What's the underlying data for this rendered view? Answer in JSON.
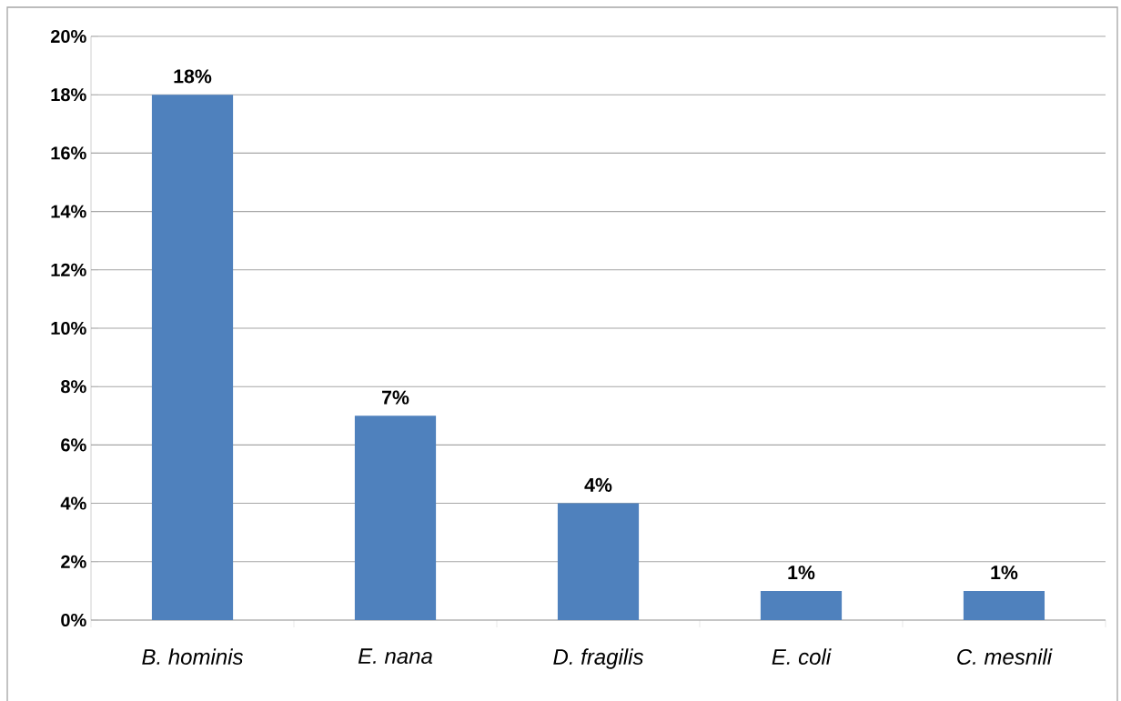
{
  "chart_data": {
    "type": "bar",
    "categories": [
      "B. hominis",
      "E. nana",
      "D. fragilis",
      "E. coli",
      "C. mesnili"
    ],
    "values": [
      18,
      7,
      4,
      1,
      1
    ],
    "value_labels": [
      "18%",
      "7%",
      "4%",
      "1%",
      "1%"
    ],
    "color": "#4f81bd",
    "ylim": [
      0,
      20
    ],
    "yticks": [
      {
        "value": 0,
        "label": "0%"
      },
      {
        "value": 2,
        "label": "2%"
      },
      {
        "value": 4,
        "label": "4%"
      },
      {
        "value": 6,
        "label": "6%"
      },
      {
        "value": 8,
        "label": "8%"
      },
      {
        "value": 10,
        "label": "10%"
      },
      {
        "value": 12,
        "label": "12%"
      },
      {
        "value": 14,
        "label": "14%"
      },
      {
        "value": 16,
        "label": "16%"
      },
      {
        "value": 18,
        "label": "18%"
      },
      {
        "value": 20,
        "label": "20%"
      }
    ],
    "grid": "y"
  }
}
